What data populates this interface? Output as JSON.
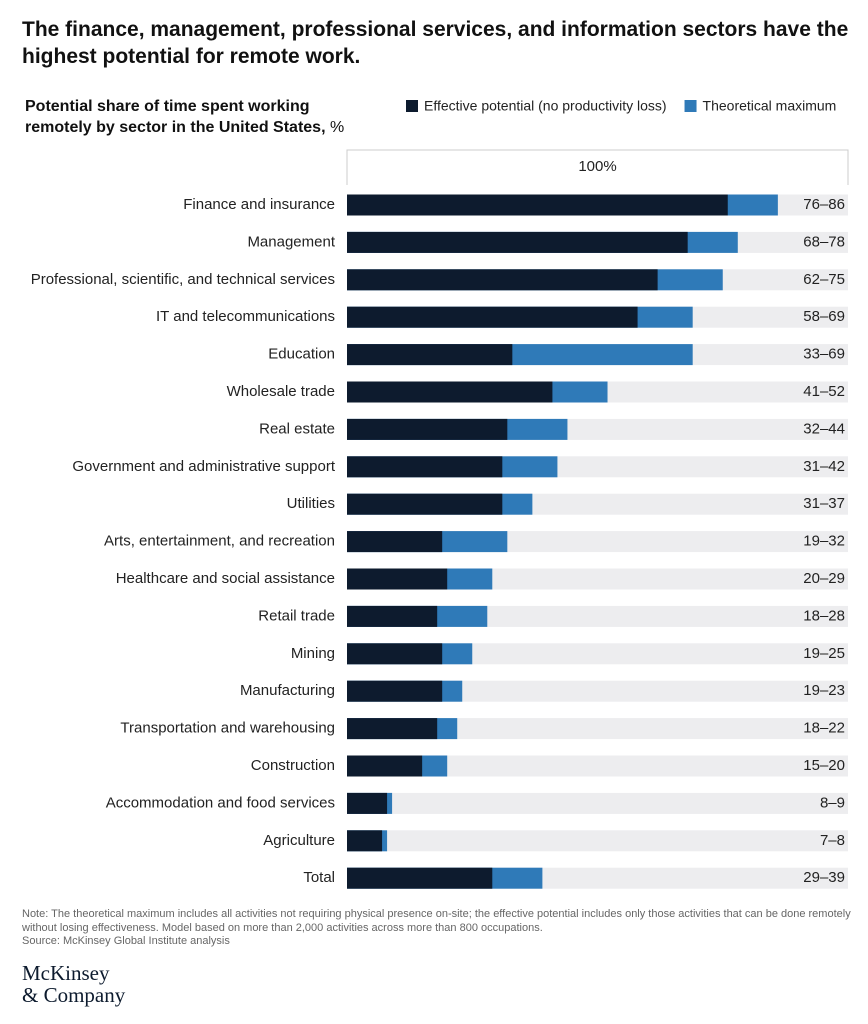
{
  "chart_data": {
    "type": "overlap-bar",
    "title": "The finance, management, professional services, and information sectors have the highest potential for remote work.",
    "subtitle": "Potential share of time spent working remotely by sector in the United States,",
    "unit": "%",
    "categories": [
      "Finance and insurance",
      "Management",
      "Professional, scientific, and technical services",
      "IT and telecommunications",
      "Education",
      "Wholesale trade",
      "Real estate",
      "Government and administrative support",
      "Utilities",
      "Arts, entertainment, and recreation",
      "Healthcare and social assistance",
      "Retail trade",
      "Mining",
      "Manufacturing",
      "Transportation and warehousing",
      "Construction",
      "Accommodation and food services",
      "Agriculture",
      "Total"
    ],
    "series": [
      {
        "name": "Effective potential (no productivity loss)",
        "color": "#0d1b2e",
        "values": [
          76,
          68,
          62,
          58,
          33,
          41,
          32,
          31,
          31,
          19,
          20,
          18,
          19,
          19,
          18,
          15,
          8,
          7,
          29
        ]
      },
      {
        "name": "Theoretical maximum",
        "color": "#2f7ab8",
        "values": [
          86,
          78,
          75,
          69,
          69,
          52,
          44,
          42,
          37,
          32,
          29,
          28,
          25,
          23,
          22,
          20,
          9,
          8,
          39
        ]
      }
    ],
    "value_labels": [
      "76–86",
      "68–78",
      "62–75",
      "58–69",
      "33–69",
      "41–52",
      "32–44",
      "31–42",
      "31–37",
      "19–32",
      "20–29",
      "18–28",
      "19–25",
      "19–23",
      "18–22",
      "15–20",
      "8–9",
      "7–8",
      "29–39"
    ],
    "xlim": [
      0,
      100
    ],
    "xticks": [
      {
        "value": 100,
        "label": "100%"
      }
    ],
    "track_color": "#ededef",
    "note": "Note: The theoretical maximum includes all activities not requiring physical presence on-site; the effective potential includes only those activities that can be done remotely without losing effectiveness. Model based on more than 2,000 activities across more than 800 occupations.",
    "source": "Source: McKinsey Global Institute analysis",
    "logo": [
      "McKinsey",
      "& Company"
    ]
  }
}
